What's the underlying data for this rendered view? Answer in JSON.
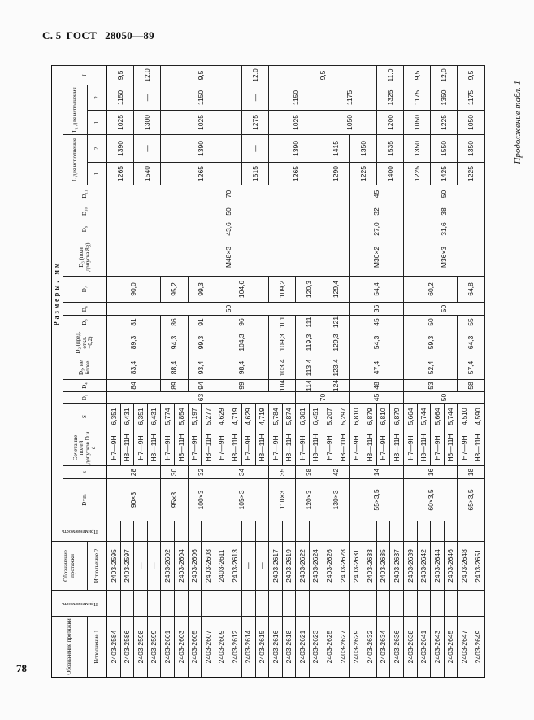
{
  "page": {
    "header_page": "С. 5",
    "header_gost": "ГОСТ",
    "header_number": "28050—89",
    "page_number": "78",
    "continuation": "Продолжение табл. 1"
  },
  "headers": {
    "designation": "Обозначение протяжки",
    "variant1": "Исполнение 1",
    "variant2": "Исполнение 2",
    "applicability": "Применяемость",
    "dimensions": "Размеры, мм",
    "dxm": "D×m",
    "z": "z",
    "tolerance": "Сочетание полей допусков D и d",
    "s": "S",
    "d1": "D₁",
    "d4": "D₄",
    "d5": "D₅, не более",
    "d2": "D₂ (пред. откл. −0,2)",
    "d8": "D₈",
    "d6": "D₆",
    "d7": "D₇",
    "d3": "D₃ (поле допуска 8g)",
    "d9": "D₉",
    "d10": "D₁₀",
    "d11": "D₁₁",
    "L": "L для исполнения",
    "L1": "L₁ для исполнения",
    "sub1": "1",
    "sub2": "2",
    "l": "l"
  },
  "table": {
    "rows": [
      {
        "isp1": "2403-2584",
        "isp2": "2403-2595",
        "tol": "H7—9H",
        "s": "6,351"
      },
      {
        "isp1": "2403-2586",
        "isp2": "2403-2597",
        "tol": "H8—11H",
        "s": "6,431"
      },
      {
        "isp1": "2403-2598",
        "isp2": "—",
        "tol": "H7—9H",
        "s": "6,351"
      },
      {
        "isp1": "2403-2599",
        "isp2": "—",
        "tol": "H8—11H",
        "s": "6,431"
      },
      {
        "isp1": "2403-2601",
        "isp2": "2403-2602",
        "tol": "H7—9H",
        "s": "5,774"
      },
      {
        "isp1": "2403-2603",
        "isp2": "2403-2604",
        "tol": "H8—11H",
        "s": "5,854"
      },
      {
        "isp1": "2403-2605",
        "isp2": "2403-2606",
        "tol": "H7—9H",
        "s": "5,197"
      },
      {
        "isp1": "2403-2607",
        "isp2": "2403-2608",
        "tol": "H8—11H",
        "s": "5,277"
      },
      {
        "isp1": "2403-2609",
        "isp2": "2403-2611",
        "tol": "H7—9H",
        "s": "4,629"
      },
      {
        "isp1": "2403-2612",
        "isp2": "2403-2613",
        "tol": "H8—11H",
        "s": "4,719"
      },
      {
        "isp1": "2403-2614",
        "isp2": "—",
        "tol": "H7—9H",
        "s": "4,629"
      },
      {
        "isp1": "2403-2615",
        "isp2": "—",
        "tol": "H8—11H",
        "s": "4,719"
      },
      {
        "isp1": "2403-2616",
        "isp2": "2403-2617",
        "tol": "H7—9H",
        "s": "5,784"
      },
      {
        "isp1": "2403-2618",
        "isp2": "2403-2619",
        "tol": "H8—11H",
        "s": "5,874"
      },
      {
        "isp1": "2403-2621",
        "isp2": "2403-2622",
        "tol": "H7—9H",
        "s": "6,361"
      },
      {
        "isp1": "2403-2623",
        "isp2": "2403-2624",
        "tol": "H8—11H",
        "s": "6,451"
      },
      {
        "isp1": "2403-2625",
        "isp2": "2403-2626",
        "tol": "H7—9H",
        "s": "5,207"
      },
      {
        "isp1": "2403-2627",
        "isp2": "2403-2628",
        "tol": "H8—11H",
        "s": "5,297"
      },
      {
        "isp1": "2403-2629",
        "isp2": "2403-2631",
        "tol": "H7—9H",
        "s": "6,810"
      },
      {
        "isp1": "2403-2632",
        "isp2": "2403-2633",
        "tol": "H8—11H",
        "s": "6,879"
      },
      {
        "isp1": "2403-2634",
        "isp2": "2403-2635",
        "tol": "H7—9H",
        "s": "6,810"
      },
      {
        "isp1": "2403-2636",
        "isp2": "2403-2637",
        "tol": "H8—11H",
        "s": "6,879"
      },
      {
        "isp1": "2403-2638",
        "isp2": "2403-2639",
        "tol": "H7—9H",
        "s": "5,664"
      },
      {
        "isp1": "2403-2641",
        "isp2": "2403-2642",
        "tol": "H8—11H",
        "s": "5,744"
      },
      {
        "isp1": "2403-2643",
        "isp2": "2403-2644",
        "tol": "H7—9H",
        "s": "5,664"
      },
      {
        "isp1": "2403-2645",
        "isp2": "2403-2646",
        "tol": "H8—11H",
        "s": "5,744"
      },
      {
        "isp1": "2403-2647",
        "isp2": "2403-2648",
        "tol": "H7—9H",
        "s": "4,510"
      },
      {
        "isp1": "2403-2649",
        "isp2": "2403-2651",
        "tol": "H8—11H",
        "s": "4,590"
      }
    ],
    "groups": {
      "dxm": [
        {
          "v": "90×3",
          "rows": 4
        },
        {
          "v": "95×3",
          "rows": 2
        },
        {
          "v": "100×3",
          "rows": 2
        },
        {
          "v": "105×3",
          "rows": 4
        },
        {
          "v": "110×3",
          "rows": 2
        },
        {
          "v": "120×3",
          "rows": 2
        },
        {
          "v": "130×3",
          "rows": 2
        },
        {
          "v": "55×3,5",
          "rows": 4
        },
        {
          "v": "60×3,5",
          "rows": 4
        },
        {
          "v": "65×3,5",
          "rows": 2
        }
      ],
      "z": [
        {
          "v": "28",
          "rows": 4
        },
        {
          "v": "30",
          "rows": 2
        },
        {
          "v": "32",
          "rows": 2
        },
        {
          "v": "34",
          "rows": 4
        },
        {
          "v": "35",
          "rows": 2
        },
        {
          "v": "38",
          "rows": 2
        },
        {
          "v": "42",
          "rows": 2
        },
        {
          "v": "14",
          "rows": 4
        },
        {
          "v": "16",
          "rows": 4
        },
        {
          "v": "18",
          "rows": 2
        }
      ],
      "d1": [
        {
          "v": "63",
          "rows": 14
        },
        {
          "v": "70",
          "rows": 4
        },
        {
          "v": "45",
          "rows": 4
        },
        {
          "v": "50",
          "rows": 6
        }
      ],
      "d4": [
        {
          "v": "84",
          "rows": 4
        },
        {
          "v": "89",
          "rows": 2
        },
        {
          "v": "94",
          "rows": 2
        },
        {
          "v": "99",
          "rows": 4
        },
        {
          "v": "104",
          "rows": 2
        },
        {
          "v": "114",
          "rows": 2
        },
        {
          "v": "124",
          "rows": 2
        },
        {
          "v": "48",
          "rows": 4
        },
        {
          "v": "53",
          "rows": 4
        },
        {
          "v": "58",
          "rows": 2
        }
      ],
      "d5": [
        {
          "v": "83,4",
          "rows": 4
        },
        {
          "v": "88,4",
          "rows": 2
        },
        {
          "v": "93,4",
          "rows": 2
        },
        {
          "v": "98,4",
          "rows": 4
        },
        {
          "v": "103,4",
          "rows": 2
        },
        {
          "v": "113,4",
          "rows": 2
        },
        {
          "v": "123,4",
          "rows": 2
        },
        {
          "v": "47,4",
          "rows": 4
        },
        {
          "v": "52,4",
          "rows": 4
        },
        {
          "v": "57,4",
          "rows": 2
        }
      ],
      "d2": [
        {
          "v": "89,3",
          "rows": 4
        },
        {
          "v": "94,3",
          "rows": 2
        },
        {
          "v": "99,3",
          "rows": 2
        },
        {
          "v": "104,3",
          "rows": 4
        },
        {
          "v": "109,3",
          "rows": 2
        },
        {
          "v": "119,3",
          "rows": 2
        },
        {
          "v": "129,3",
          "rows": 2
        },
        {
          "v": "54,3",
          "rows": 4
        },
        {
          "v": "59,3",
          "rows": 4
        },
        {
          "v": "64,3",
          "rows": 2
        }
      ],
      "d8": [
        {
          "v": "81",
          "rows": 4
        },
        {
          "v": "86",
          "rows": 2
        },
        {
          "v": "91",
          "rows": 2
        },
        {
          "v": "96",
          "rows": 4
        },
        {
          "v": "101",
          "rows": 2
        },
        {
          "v": "111",
          "rows": 2
        },
        {
          "v": "121",
          "rows": 2
        },
        {
          "v": "45",
          "rows": 4
        },
        {
          "v": "50",
          "rows": 4
        },
        {
          "v": "55",
          "rows": 2
        }
      ],
      "d6": [
        {
          "v": "50",
          "rows": 18
        },
        {
          "v": "36",
          "rows": 4
        },
        {
          "v": "50",
          "rows": 6
        }
      ],
      "d7": [
        {
          "v": "90,0",
          "rows": 4
        },
        {
          "v": "95,2",
          "rows": 2
        },
        {
          "v": "99,3",
          "rows": 2
        },
        {
          "v": "104,6",
          "rows": 4
        },
        {
          "v": "109,2",
          "rows": 2
        },
        {
          "v": "120,3",
          "rows": 2
        },
        {
          "v": "129,4",
          "rows": 2
        },
        {
          "v": "54,4",
          "rows": 4
        },
        {
          "v": "60,2",
          "rows": 4
        },
        {
          "v": "64,8",
          "rows": 2
        }
      ],
      "d3": [
        {
          "v": "M48×3",
          "rows": 18
        },
        {
          "v": "M30×2",
          "rows": 4
        },
        {
          "v": "M36×3",
          "rows": 6
        }
      ],
      "d9": [
        {
          "v": "43,6",
          "rows": 18
        },
        {
          "v": "27,0",
          "rows": 4
        },
        {
          "v": "31,6",
          "rows": 6
        }
      ],
      "d10": [
        {
          "v": "50",
          "rows": 18
        },
        {
          "v": "32",
          "rows": 4
        },
        {
          "v": "38",
          "rows": 6
        }
      ],
      "d11": [
        {
          "v": "70",
          "rows": 18
        },
        {
          "v": "45",
          "rows": 4
        },
        {
          "v": "50",
          "rows": 6
        }
      ],
      "L_1": [
        {
          "v": "1265",
          "rows": 2
        },
        {
          "v": "1540",
          "rows": 2
        },
        {
          "v": "1265",
          "rows": 6
        },
        {
          "v": "1515",
          "rows": 2
        },
        {
          "v": "1265",
          "rows": 4
        },
        {
          "v": "1290",
          "rows": 2
        },
        {
          "v": "1225",
          "rows": 2
        },
        {
          "v": "1400",
          "rows": 2
        },
        {
          "v": "1225",
          "rows": 2
        },
        {
          "v": "1425",
          "rows": 2
        },
        {
          "v": "1225",
          "rows": 2
        }
      ],
      "L_2": [
        {
          "v": "1390",
          "rows": 2
        },
        {
          "v": "—",
          "rows": 2
        },
        {
          "v": "1390",
          "rows": 6
        },
        {
          "v": "—",
          "rows": 2
        },
        {
          "v": "1390",
          "rows": 4
        },
        {
          "v": "1415",
          "rows": 2
        },
        {
          "v": "1350",
          "rows": 2
        },
        {
          "v": "1535",
          "rows": 2
        },
        {
          "v": "1350",
          "rows": 2
        },
        {
          "v": "1550",
          "rows": 2
        },
        {
          "v": "1350",
          "rows": 2
        }
      ],
      "L1_1": [
        {
          "v": "1025",
          "rows": 2
        },
        {
          "v": "1300",
          "rows": 2
        },
        {
          "v": "1025",
          "rows": 6
        },
        {
          "v": "1275",
          "rows": 2
        },
        {
          "v": "1025",
          "rows": 4
        },
        {
          "v": "1050",
          "rows": 4
        },
        {
          "v": "1200",
          "rows": 2
        },
        {
          "v": "1050",
          "rows": 2
        },
        {
          "v": "1225",
          "rows": 2
        },
        {
          "v": "1050",
          "rows": 2
        }
      ],
      "L1_2": [
        {
          "v": "1150",
          "rows": 2
        },
        {
          "v": "—",
          "rows": 2
        },
        {
          "v": "1150",
          "rows": 6
        },
        {
          "v": "—",
          "rows": 2
        },
        {
          "v": "1150",
          "rows": 4
        },
        {
          "v": "1175",
          "rows": 4
        },
        {
          "v": "1325",
          "rows": 2
        },
        {
          "v": "1175",
          "rows": 2
        },
        {
          "v": "1350",
          "rows": 2
        },
        {
          "v": "1175",
          "rows": 2
        }
      ],
      "l": [
        {
          "v": "9,5",
          "rows": 2
        },
        {
          "v": "12,0",
          "rows": 2
        },
        {
          "v": "9,5",
          "rows": 6
        },
        {
          "v": "12,0",
          "rows": 2
        },
        {
          "v": "9,5",
          "rows": 8
        },
        {
          "v": "11,0",
          "rows": 2
        },
        {
          "v": "9,5",
          "rows": 2
        },
        {
          "v": "12,0",
          "rows": 2
        },
        {
          "v": "9,5",
          "rows": 2
        }
      ]
    }
  }
}
